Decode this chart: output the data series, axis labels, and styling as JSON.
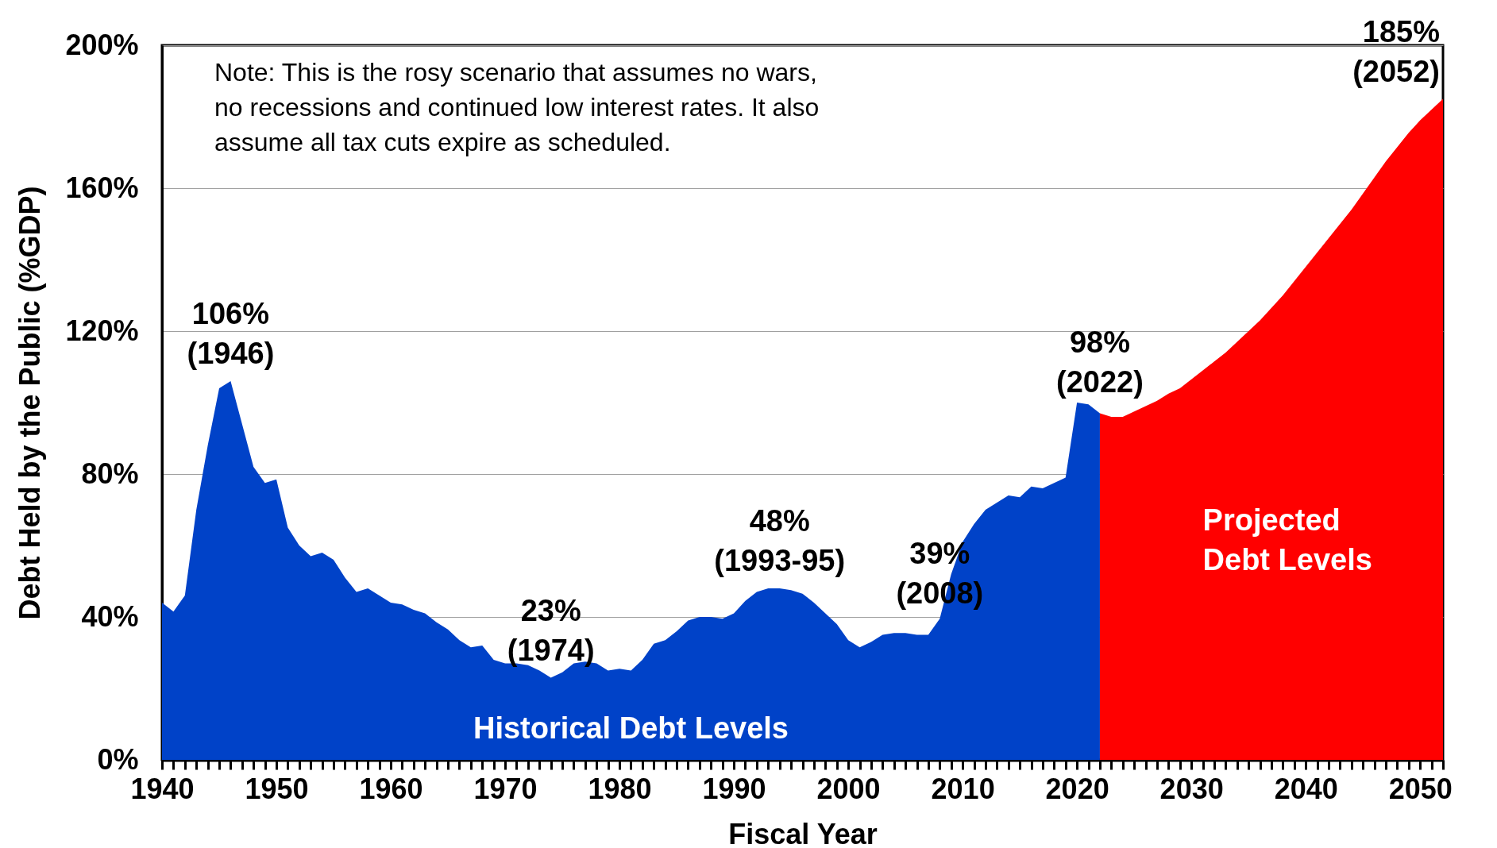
{
  "chart_data": {
    "type": "area",
    "xlabel": "Fiscal Year",
    "ylabel": "Debt Held by the Public (%GDP)",
    "xlim": [
      1940,
      2052
    ],
    "ylim": [
      0,
      200
    ],
    "xticks": [
      1940,
      {
        "value": 1941,
        "label": null
      },
      {
        "value": 1942,
        "label": null
      },
      {
        "value": 1943,
        "label": null
      },
      {
        "value": 1944,
        "label": null
      },
      {
        "value": 1945,
        "label": null
      },
      {
        "value": 1946,
        "label": null
      },
      {
        "value": 1947,
        "label": null
      },
      {
        "value": 1948,
        "label": null
      },
      {
        "value": 1949,
        "label": null
      },
      1950,
      {
        "value": 1951,
        "label": null
      },
      {
        "value": 1952,
        "label": null
      },
      {
        "value": 1953,
        "label": null
      },
      {
        "value": 1954,
        "label": null
      },
      {
        "value": 1955,
        "label": null
      },
      {
        "value": 1956,
        "label": null
      },
      {
        "value": 1957,
        "label": null
      },
      {
        "value": 1958,
        "label": null
      },
      {
        "value": 1959,
        "label": null
      },
      1960,
      {
        "value": 1961,
        "label": null
      },
      {
        "value": 1962,
        "label": null
      },
      {
        "value": 1963,
        "label": null
      },
      {
        "value": 1964,
        "label": null
      },
      {
        "value": 1965,
        "label": null
      },
      {
        "value": 1966,
        "label": null
      },
      {
        "value": 1967,
        "label": null
      },
      {
        "value": 1968,
        "label": null
      },
      {
        "value": 1969,
        "label": null
      },
      1970,
      {
        "value": 1971,
        "label": null
      },
      {
        "value": 1972,
        "label": null
      },
      {
        "value": 1973,
        "label": null
      },
      {
        "value": 1974,
        "label": null
      },
      {
        "value": 1975,
        "label": null
      },
      {
        "value": 1976,
        "label": null
      },
      {
        "value": 1977,
        "label": null
      },
      {
        "value": 1978,
        "label": null
      },
      {
        "value": 1979,
        "label": null
      },
      1980,
      {
        "value": 1981,
        "label": null
      },
      {
        "value": 1982,
        "label": null
      },
      {
        "value": 1983,
        "label": null
      },
      {
        "value": 1984,
        "label": null
      },
      {
        "value": 1985,
        "label": null
      },
      {
        "value": 1986,
        "label": null
      },
      {
        "value": 1987,
        "label": null
      },
      {
        "value": 1988,
        "label": null
      },
      {
        "value": 1989,
        "label": null
      },
      1990,
      {
        "value": 1991,
        "label": null
      },
      {
        "value": 1992,
        "label": null
      },
      {
        "value": 1993,
        "label": null
      },
      {
        "value": 1994,
        "label": null
      },
      {
        "value": 1995,
        "label": null
      },
      {
        "value": 1996,
        "label": null
      },
      {
        "value": 1997,
        "label": null
      },
      {
        "value": 1998,
        "label": null
      },
      {
        "value": 1999,
        "label": null
      },
      2000,
      {
        "value": 2001,
        "label": null
      },
      {
        "value": 2002,
        "label": null
      },
      {
        "value": 2003,
        "label": null
      },
      {
        "value": 2004,
        "label": null
      },
      {
        "value": 2005,
        "label": null
      },
      {
        "value": 2006,
        "label": null
      },
      {
        "value": 2007,
        "label": null
      },
      {
        "value": 2008,
        "label": null
      },
      {
        "value": 2009,
        "label": null
      },
      2010,
      {
        "value": 2011,
        "label": null
      },
      {
        "value": 2012,
        "label": null
      },
      {
        "value": 2013,
        "label": null
      },
      {
        "value": 2014,
        "label": null
      },
      {
        "value": 2015,
        "label": null
      },
      {
        "value": 2016,
        "label": null
      },
      {
        "value": 2017,
        "label": null
      },
      {
        "value": 2018,
        "label": null
      },
      {
        "value": 2019,
        "label": null
      },
      2020,
      {
        "value": 2021,
        "label": null
      },
      {
        "value": 2022,
        "label": null
      },
      {
        "value": 2023,
        "label": null
      },
      {
        "value": 2024,
        "label": null
      },
      {
        "value": 2025,
        "label": null
      },
      {
        "value": 2026,
        "label": null
      },
      {
        "value": 2027,
        "label": null
      },
      {
        "value": 2028,
        "label": null
      },
      {
        "value": 2029,
        "label": null
      },
      2030,
      {
        "value": 2031,
        "label": null
      },
      {
        "value": 2032,
        "label": null
      },
      {
        "value": 2033,
        "label": null
      },
      {
        "value": 2034,
        "label": null
      },
      {
        "value": 2035,
        "label": null
      },
      {
        "value": 2036,
        "label": null
      },
      {
        "value": 2037,
        "label": null
      },
      {
        "value": 2038,
        "label": null
      },
      {
        "value": 2039,
        "label": null
      },
      2040,
      {
        "value": 2041,
        "label": null
      },
      {
        "value": 2042,
        "label": null
      },
      {
        "value": 2043,
        "label": null
      },
      {
        "value": 2044,
        "label": null
      },
      {
        "value": 2045,
        "label": null
      },
      {
        "value": 2046,
        "label": null
      },
      {
        "value": 2047,
        "label": null
      },
      {
        "value": 2048,
        "label": null
      },
      {
        "value": 2049,
        "label": null
      },
      2050,
      {
        "value": 2051,
        "label": null
      },
      {
        "value": 2052,
        "label": null
      }
    ],
    "yticks": [
      {
        "value": 0,
        "label": "0%"
      },
      {
        "value": 40,
        "label": "40%"
      },
      {
        "value": 80,
        "label": "80%"
      },
      {
        "value": 120,
        "label": "120%"
      },
      {
        "value": 160,
        "label": "160%"
      },
      {
        "value": 200,
        "label": "200%"
      }
    ],
    "grid": "y",
    "series": [
      {
        "name": "Historical Debt Levels",
        "color": "#0042c8",
        "x": [
          1940,
          1941,
          1942,
          1943,
          1944,
          1945,
          1946,
          1947,
          1948,
          1949,
          1950,
          1951,
          1952,
          1953,
          1954,
          1955,
          1956,
          1957,
          1958,
          1959,
          1960,
          1961,
          1962,
          1963,
          1964,
          1965,
          1966,
          1967,
          1968,
          1969,
          1970,
          1971,
          1972,
          1973,
          1974,
          1975,
          1976,
          1977,
          1978,
          1979,
          1980,
          1981,
          1982,
          1983,
          1984,
          1985,
          1986,
          1987,
          1988,
          1989,
          1990,
          1991,
          1992,
          1993,
          1994,
          1995,
          1996,
          1997,
          1998,
          1999,
          2000,
          2001,
          2002,
          2003,
          2004,
          2005,
          2006,
          2007,
          2008,
          2009,
          2010,
          2011,
          2012,
          2013,
          2014,
          2015,
          2016,
          2017,
          2018,
          2019,
          2020,
          2021,
          2022
        ],
        "values": [
          44,
          41.5,
          46,
          70,
          88,
          104,
          106,
          94,
          82,
          77.5,
          78.5,
          65,
          60,
          57,
          58,
          56,
          51,
          47,
          48,
          46,
          44,
          43.5,
          42,
          41,
          38.5,
          36.5,
          33.5,
          31.5,
          32,
          28,
          27,
          27,
          26.5,
          25,
          23,
          24.5,
          27,
          27.5,
          27,
          25,
          25.5,
          25,
          28,
          32.5,
          33.5,
          36,
          39,
          40,
          40,
          39.5,
          41,
          44.5,
          47,
          48,
          48,
          47.5,
          46.5,
          44,
          41,
          38,
          33.5,
          31.5,
          33,
          35,
          35.5,
          35.5,
          35,
          35,
          39.5,
          52,
          61,
          66,
          70,
          72,
          74,
          73.5,
          76.5,
          76,
          77.5,
          79,
          100,
          99.5,
          97
        ]
      },
      {
        "name": "Projected Debt Levels",
        "color": "#ff0000",
        "x": [
          2022,
          2023,
          2024,
          2025,
          2026,
          2027,
          2028,
          2029,
          2030,
          2031,
          2032,
          2033,
          2034,
          2035,
          2036,
          2037,
          2038,
          2039,
          2040,
          2041,
          2042,
          2043,
          2044,
          2045,
          2046,
          2047,
          2048,
          2049,
          2050,
          2051,
          2052
        ],
        "values": [
          97,
          96,
          96,
          97.5,
          99,
          100.5,
          102.5,
          104,
          106.5,
          109,
          111.5,
          114,
          117,
          120,
          123,
          126.5,
          130,
          134,
          138,
          142,
          146,
          150,
          154,
          158.5,
          163,
          167.5,
          171.5,
          175.5,
          179,
          182,
          185
        ]
      }
    ],
    "annotations": [
      {
        "text": "106%\n(1946)",
        "x": 1946,
        "y": 106
      },
      {
        "text": "23%\n(1974)",
        "x": 1974,
        "y": 23
      },
      {
        "text": "48%\n(1993-95)",
        "x": 1994,
        "y": 48
      },
      {
        "text": "39%\n(2008)",
        "x": 2008,
        "y": 39
      },
      {
        "text": "98%\n(2022)",
        "x": 2022,
        "y": 98
      },
      {
        "text": "185%\n(2052)",
        "x": 2052,
        "y": 185
      },
      "Note: This is the rosy scenario that assumes no wars,\nno recessions and continued low interest rates. It also\nassume all tax cuts expire as scheduled."
    ]
  }
}
